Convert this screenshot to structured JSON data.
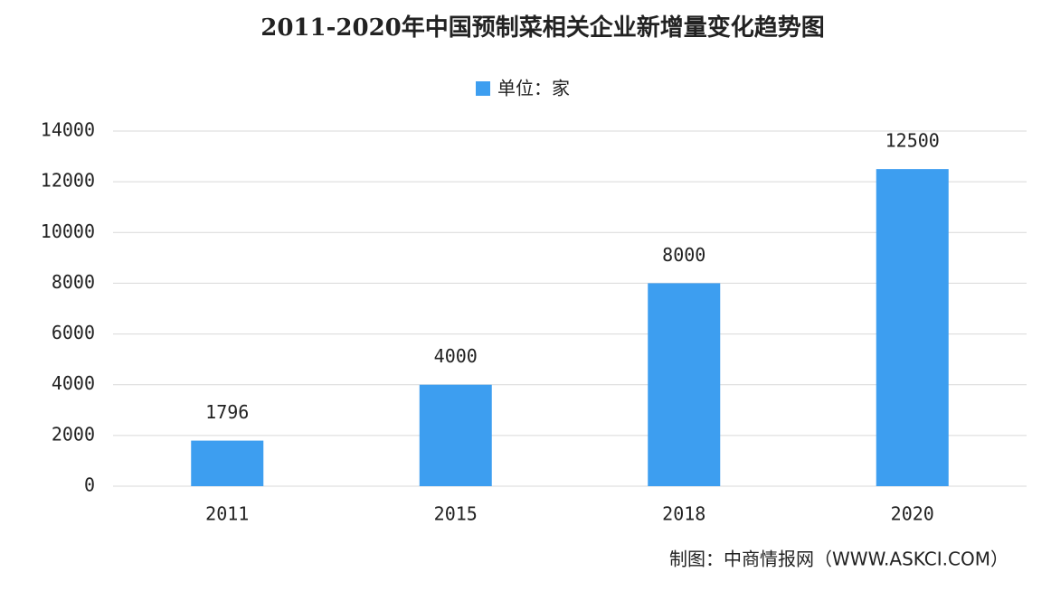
{
  "chart_data": {
    "type": "bar",
    "title": "2011-2020年中国预制菜相关企业新增量变化趋势图",
    "categories": [
      "2011",
      "2015",
      "2018",
      "2020"
    ],
    "series": [
      {
        "name": "单位：家",
        "color": "#3d9ef0",
        "values": [
          1796,
          4000,
          8000,
          12500
        ]
      }
    ],
    "ylim": [
      0,
      14000
    ],
    "yticks": [
      0,
      2000,
      4000,
      6000,
      8000,
      10000,
      12000,
      14000
    ],
    "grid": true,
    "legend": "top",
    "source": "制图：中商情报网（WWW.ASKCI.COM）"
  }
}
